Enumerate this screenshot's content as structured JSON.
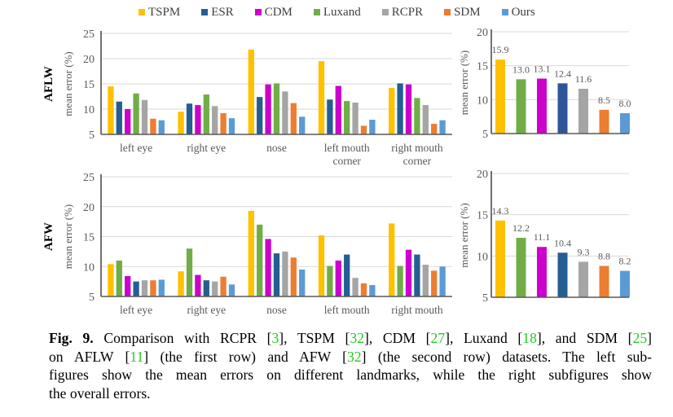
{
  "legend": [
    {
      "label": "TSPM",
      "color": "#FFC000"
    },
    {
      "label": "ESR",
      "color": "#255E91"
    },
    {
      "label": "CDM",
      "color": "#CC00CC"
    },
    {
      "label": "Luxand",
      "color": "#70AD47"
    },
    {
      "label": "RCPR",
      "color": "#A5A5A5"
    },
    {
      "label": "SDM",
      "color": "#ED7D31"
    },
    {
      "label": "Ours",
      "color": "#5B9BD5"
    }
  ],
  "row_labels": [
    "AFLW",
    "AFW"
  ],
  "chart_data": [
    {
      "type": "bar",
      "row": "AFLW",
      "ylabel": "mean error (%)",
      "ylim": [
        5,
        25
      ],
      "yticks": [
        "5",
        "10",
        "15",
        "20",
        "25"
      ],
      "grid": true,
      "categories": [
        [
          "left eye"
        ],
        [
          "right eye"
        ],
        [
          "nose"
        ],
        [
          "left mouth",
          "corner"
        ],
        [
          "right mouth",
          "corner"
        ]
      ],
      "series": [
        {
          "name": "TSPM",
          "color": "#FFC000",
          "values": [
            14.5,
            9.5,
            21.8,
            19.5,
            14.2
          ]
        },
        {
          "name": "ESR",
          "color": "#255E91",
          "values": [
            11.5,
            11.1,
            12.4,
            11.9,
            15.1
          ]
        },
        {
          "name": "CDM",
          "color": "#CC00CC",
          "values": [
            10.0,
            10.8,
            14.9,
            14.6,
            14.9
          ]
        },
        {
          "name": "Luxand",
          "color": "#70AD47",
          "values": [
            13.1,
            12.9,
            15.1,
            11.6,
            12.2
          ]
        },
        {
          "name": "RCPR",
          "color": "#A5A5A5",
          "values": [
            11.8,
            10.6,
            13.5,
            11.3,
            10.8
          ]
        },
        {
          "name": "SDM",
          "color": "#ED7D31",
          "values": [
            8.1,
            9.2,
            11.2,
            6.7,
            7.1
          ]
        },
        {
          "name": "Ours",
          "color": "#5B9BD5",
          "values": [
            7.8,
            8.2,
            8.5,
            7.9,
            7.8
          ]
        }
      ]
    },
    {
      "type": "bar",
      "row": "AFLW",
      "ylabel": "mean error (%)",
      "ylim": [
        5,
        20
      ],
      "yticks": [
        "5",
        "10",
        "15",
        "20"
      ],
      "grid": true,
      "series": [
        {
          "name": "TSPM",
          "color": "#FFC000",
          "value": 15.9,
          "label": "15.9"
        },
        {
          "name": "Luxand",
          "color": "#70AD47",
          "value": 13.0,
          "label": "13.0"
        },
        {
          "name": "CDM",
          "color": "#CC00CC",
          "value": 13.1,
          "label": "13.1"
        },
        {
          "name": "ESR",
          "color": "#2E5597",
          "value": 12.4,
          "label": "12.4"
        },
        {
          "name": "RCPR",
          "color": "#A5A5A5",
          "value": 11.6,
          "label": "11.6"
        },
        {
          "name": "SDM",
          "color": "#ED7D31",
          "value": 8.5,
          "label": "8.5"
        },
        {
          "name": "Ours",
          "color": "#5B9BD5",
          "value": 8.0,
          "label": "8.0"
        }
      ]
    },
    {
      "type": "bar",
      "row": "AFW",
      "ylabel": "mean error (%)",
      "ylim": [
        5,
        25
      ],
      "yticks": [
        "5",
        "10",
        "15",
        "20",
        "25"
      ],
      "grid": true,
      "categories": [
        [
          "left eye"
        ],
        [
          "right eye"
        ],
        [
          "nose"
        ],
        [
          "left mouth"
        ],
        [
          "right mouth"
        ]
      ],
      "series": [
        {
          "name": "TSPM",
          "color": "#FFC000",
          "values": [
            10.4,
            9.2,
            19.3,
            15.2,
            17.2
          ]
        },
        {
          "name": "Luxand",
          "color": "#70AD47",
          "values": [
            11.0,
            13.0,
            17.0,
            10.1,
            10.1
          ]
        },
        {
          "name": "CDM",
          "color": "#CC00CC",
          "values": [
            8.4,
            8.6,
            14.6,
            11.0,
            12.8
          ]
        },
        {
          "name": "ESR",
          "color": "#255E91",
          "values": [
            7.5,
            7.7,
            12.2,
            12.0,
            12.0
          ]
        },
        {
          "name": "RCPR",
          "color": "#A5A5A5",
          "values": [
            7.7,
            7.5,
            12.5,
            8.1,
            10.3
          ]
        },
        {
          "name": "SDM",
          "color": "#ED7D31",
          "values": [
            7.7,
            8.3,
            11.5,
            7.2,
            9.3
          ]
        },
        {
          "name": "Ours",
          "color": "#5B9BD5",
          "values": [
            7.8,
            7.0,
            9.5,
            6.9,
            10.0
          ]
        }
      ]
    },
    {
      "type": "bar",
      "row": "AFW",
      "ylabel": "mean error (%)",
      "ylim": [
        5,
        20
      ],
      "yticks": [
        "5",
        "10",
        "15",
        "20"
      ],
      "grid": true,
      "series": [
        {
          "name": "TSPM",
          "color": "#FFC000",
          "value": 14.3,
          "label": "14.3"
        },
        {
          "name": "Luxand",
          "color": "#70AD47",
          "value": 12.2,
          "label": "12.2"
        },
        {
          "name": "CDM",
          "color": "#CC00CC",
          "value": 11.1,
          "label": "11.1"
        },
        {
          "name": "ESR",
          "color": "#255E91",
          "value": 10.4,
          "label": "10.4"
        },
        {
          "name": "RCPR",
          "color": "#A5A5A5",
          "value": 9.3,
          "label": "9.3"
        },
        {
          "name": "SDM",
          "color": "#ED7D31",
          "value": 8.8,
          "label": "8.8"
        },
        {
          "name": "Ours",
          "color": "#5B9BD5",
          "value": 8.2,
          "label": "8.2"
        }
      ]
    }
  ],
  "caption": {
    "lines": [
      [
        {
          "t": "Fig. 9.",
          "s": "bold"
        },
        {
          "t": " Comparison with RCPR ["
        },
        {
          "t": "3",
          "s": "cite"
        },
        {
          "t": "], TSPM ["
        },
        {
          "t": "32",
          "s": "cite"
        },
        {
          "t": "], CDM ["
        },
        {
          "t": "27",
          "s": "cite"
        },
        {
          "t": "], Luxand ["
        },
        {
          "t": "18",
          "s": "cite"
        },
        {
          "t": "], and SDM ["
        },
        {
          "t": "25",
          "s": "cite"
        },
        {
          "t": "]"
        }
      ],
      [
        {
          "t": "on AFLW ["
        },
        {
          "t": "11",
          "s": "cite"
        },
        {
          "t": "] (the first row) and AFW ["
        },
        {
          "t": "32",
          "s": "cite"
        },
        {
          "t": "] (the second row) datasets. The left sub-"
        }
      ],
      [
        {
          "t": "figures show the mean errors on different landmarks, while the right subfigures show"
        }
      ],
      [
        {
          "t": "the overall errors."
        }
      ]
    ]
  }
}
